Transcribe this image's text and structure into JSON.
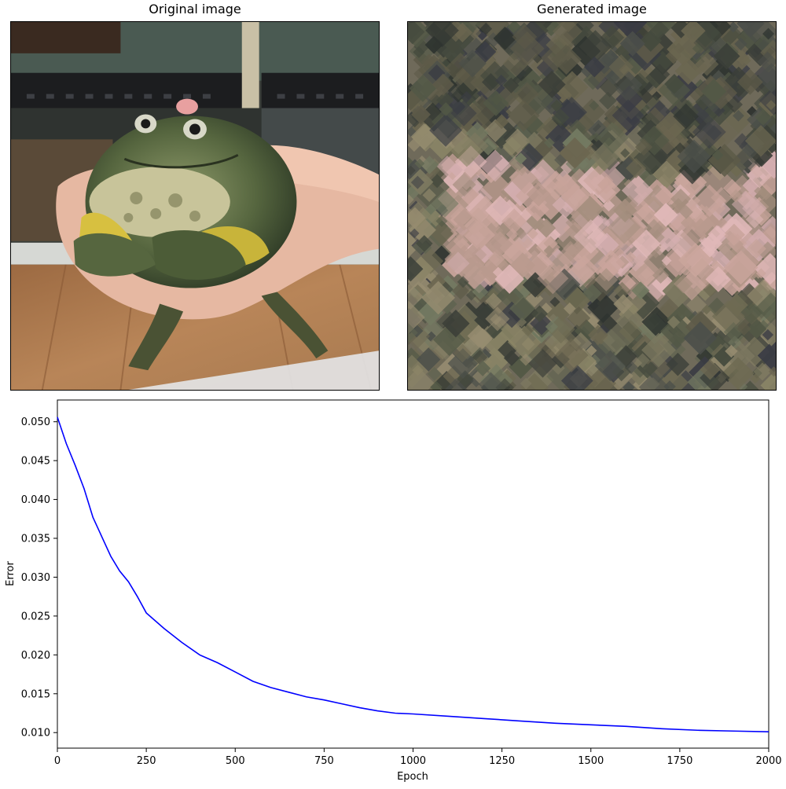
{
  "panels": {
    "original_title": "Original image",
    "generated_title": "Generated image"
  },
  "chart_data": {
    "type": "line",
    "xlabel": "Epoch",
    "ylabel": "Error",
    "xlim": [
      0,
      2000
    ],
    "ylim": [
      0.008,
      0.0528
    ],
    "xticks": [
      0,
      250,
      500,
      750,
      1000,
      1250,
      1500,
      1750,
      2000
    ],
    "yticks": [
      0.01,
      0.015,
      0.02,
      0.025,
      0.03,
      0.035,
      0.04,
      0.045,
      0.05
    ],
    "grid": false,
    "series": [
      {
        "color": "#0000ff",
        "x": [
          0,
          25,
          50,
          75,
          100,
          125,
          150,
          175,
          200,
          225,
          250,
          300,
          350,
          400,
          450,
          500,
          550,
          600,
          650,
          700,
          750,
          800,
          850,
          900,
          950,
          1000,
          1100,
          1200,
          1300,
          1400,
          1500,
          1600,
          1700,
          1800,
          1900,
          2000
        ],
        "y": [
          0.0506,
          0.0472,
          0.0444,
          0.0414,
          0.0377,
          0.0352,
          0.0327,
          0.0308,
          0.0294,
          0.0275,
          0.0254,
          0.0234,
          0.0216,
          0.02,
          0.019,
          0.0178,
          0.0166,
          0.0158,
          0.0152,
          0.0146,
          0.0142,
          0.0137,
          0.0132,
          0.0128,
          0.0125,
          0.0124,
          0.0121,
          0.0118,
          0.0115,
          0.0112,
          0.011,
          0.0108,
          0.0105,
          0.0103,
          0.0102,
          0.0101
        ]
      }
    ]
  }
}
